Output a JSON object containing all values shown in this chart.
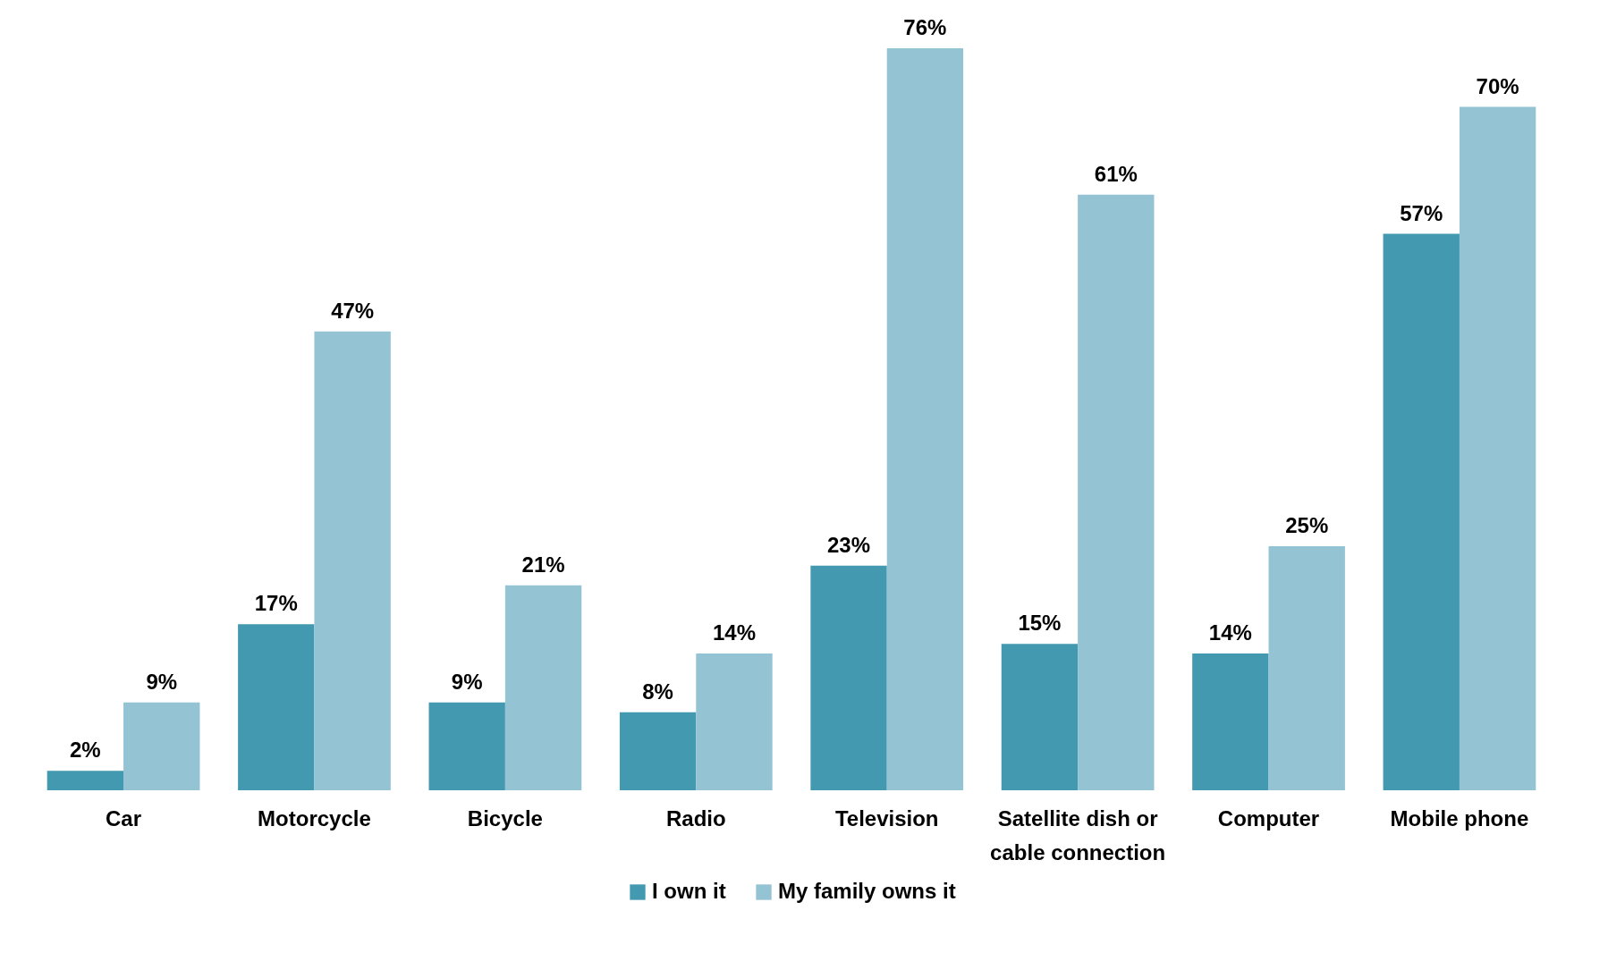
{
  "chart_data": {
    "type": "bar",
    "categories": [
      "Car",
      "Motorcycle",
      "Bicycle",
      "Radio",
      "Television",
      "Satellite dish or cable connection",
      "Computer",
      "Mobile phone"
    ],
    "series": [
      {
        "name": "I own it",
        "color": "#4299b0",
        "values": [
          2,
          17,
          9,
          8,
          23,
          15,
          14,
          57
        ],
        "value_labels": [
          "2%",
          "17%",
          "9%",
          "8%",
          "23%",
          "15%",
          "14%",
          "57%"
        ]
      },
      {
        "name": "My family owns it",
        "color": "#94c3d4",
        "values": [
          9,
          47,
          21,
          14,
          76,
          61,
          25,
          70
        ],
        "value_labels": [
          "9%",
          "47%",
          "21%",
          "14%",
          "76%",
          "61%",
          "25%",
          "70%"
        ]
      }
    ],
    "legend": "bottom"
  }
}
